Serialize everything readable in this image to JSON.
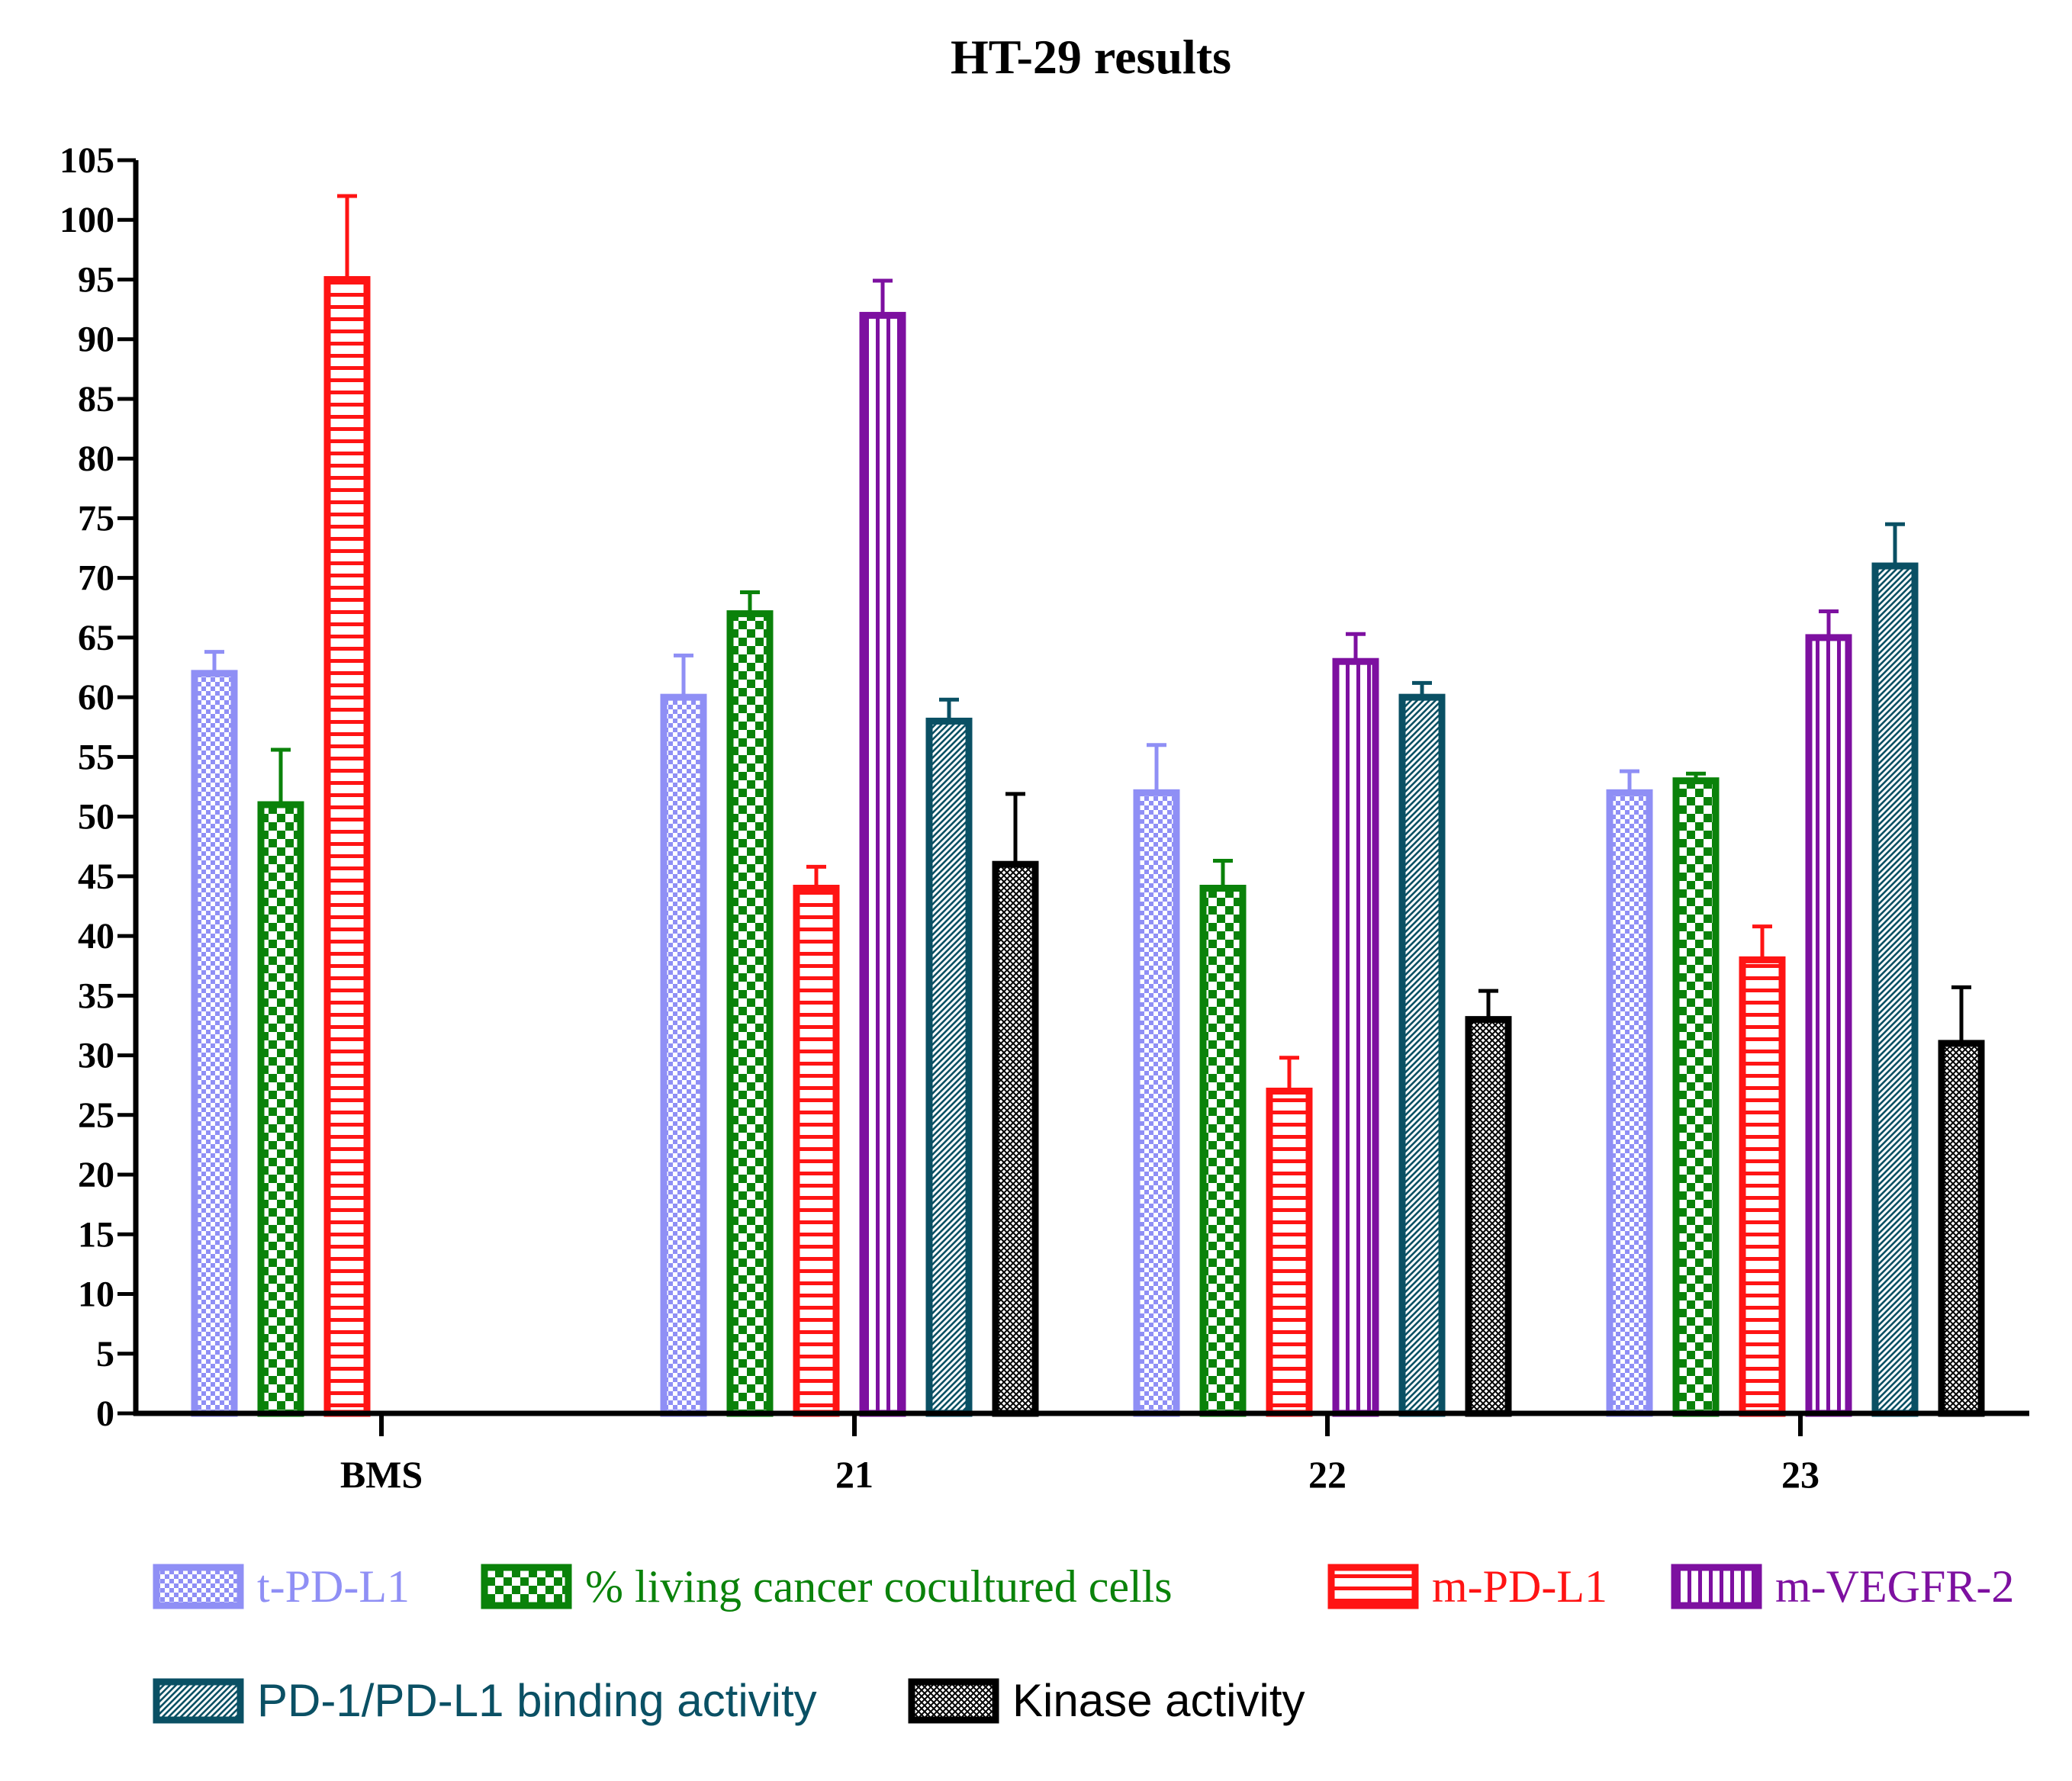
{
  "chart_data": {
    "type": "bar",
    "title": "HT-29 results",
    "xlabel": "",
    "ylabel": "",
    "ylim": [
      0,
      105
    ],
    "yticks": [
      0,
      5,
      10,
      15,
      20,
      25,
      30,
      35,
      40,
      45,
      50,
      55,
      60,
      65,
      70,
      75,
      80,
      85,
      90,
      95,
      100,
      105
    ],
    "categories": [
      "BMS",
      "21",
      "22",
      "23"
    ],
    "series": [
      {
        "name": "t-PD-L1",
        "color": "#8f8ff5",
        "pattern": "fine-checker",
        "values": [
          62,
          60,
          52,
          52
        ],
        "errors": [
          1.8,
          3.5,
          4.0,
          1.8
        ]
      },
      {
        "name": "% living cancer cocultured cells",
        "color": "#0a820a",
        "pattern": "checker",
        "values": [
          51,
          67,
          44,
          53
        ],
        "errors": [
          4.6,
          1.8,
          2.3,
          0.6
        ]
      },
      {
        "name": "m-PD-L1",
        "color": "#ff1414",
        "pattern": "horizontal-lines",
        "values": [
          95,
          44,
          27,
          38
        ],
        "errors": [
          7.0,
          1.8,
          2.8,
          2.8
        ]
      },
      {
        "name": "m-VEGFR-2",
        "color": "#7d10a0",
        "pattern": "vertical-lines",
        "values": [
          null,
          92,
          63,
          65
        ],
        "errors": [
          null,
          2.9,
          2.3,
          2.2
        ]
      },
      {
        "name": "PD-1/PD-L1 binding activity",
        "color": "#0a5064",
        "pattern": "diagonal",
        "values": [
          null,
          58,
          60,
          71
        ],
        "errors": [
          null,
          1.8,
          1.2,
          3.5
        ]
      },
      {
        "name": "Kinase activity",
        "color": "#000000",
        "pattern": "crosshatch",
        "values": [
          null,
          46,
          33,
          31
        ],
        "errors": [
          null,
          5.9,
          2.4,
          4.7
        ]
      }
    ],
    "legend": "bottom",
    "grid": false
  }
}
